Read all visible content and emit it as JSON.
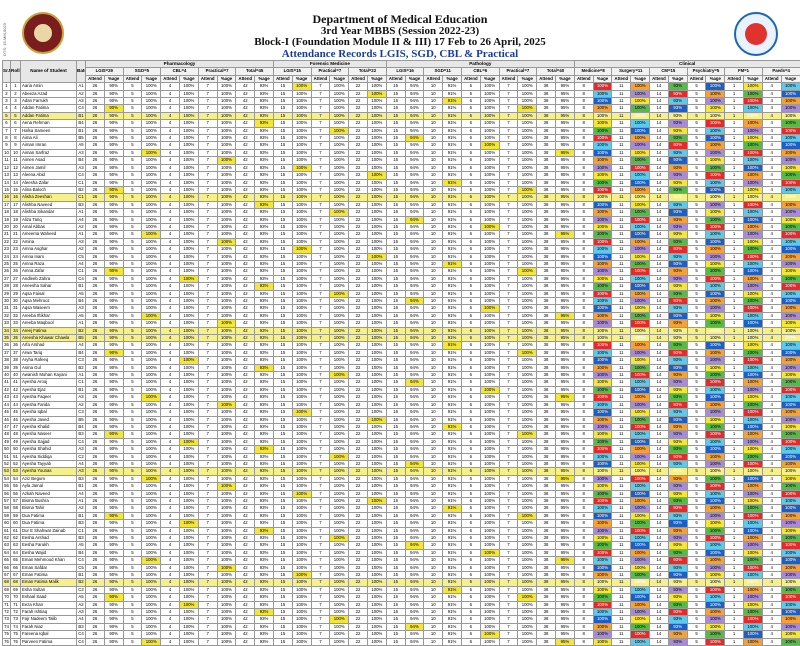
{
  "header": {
    "line1": "Department of Medical Education",
    "line2": "3rd Year MBBS (Session 2022-23)",
    "line3": "Block-I (Foundation Module II & III) 17 Feb to 26 April, 2025",
    "line4": "Attendance Records  LGIS, SGD, CBL & Practical"
  },
  "columns": {
    "sr": "Sr.No.",
    "roll": "Roll No.",
    "name": "Name of Student",
    "batch": "Batch",
    "pharmacology": "Pharmacology",
    "forensic": "Forensic Medicine",
    "pathology": "Pathology",
    "clinical": "Clinical",
    "pharma_sub": [
      "LGIS=29",
      "SGD=5",
      "CBL=4",
      "Practical=7",
      "Total=45"
    ],
    "forensic_sub": [
      "LGIS=15",
      "Practical=7",
      "Total=22"
    ],
    "patho_sub": [
      "LGIS=16",
      "SGD=11",
      "CBL=6",
      "Practical=7",
      "Total=40"
    ],
    "clinical_sub": [
      "Medicine=8",
      "Surgery=11",
      "CM=15",
      "Psychiatry=5",
      "FM=1",
      "Paeds=4"
    ],
    "attend": "Attend",
    "pct": "%age"
  },
  "students": [
    {
      "sr": "1",
      "roll": "1",
      "name": "Aaria Amin",
      "batch": "A1"
    },
    {
      "sr": "2",
      "roll": "2",
      "name": "Abeeza Azad",
      "batch": "A2"
    },
    {
      "sr": "3",
      "roll": "3",
      "name": "Adan Farrukh",
      "batch": "A3"
    },
    {
      "sr": "4",
      "roll": "4",
      "name": "Addan Fatima",
      "batch": "C4"
    },
    {
      "sr": "5",
      "roll": "5",
      "name": "Addan Fatima",
      "batch": "B1"
    },
    {
      "sr": "6",
      "roll": "6",
      "name": "Aena Rehman",
      "batch": "B4"
    },
    {
      "sr": "7",
      "roll": "7",
      "name": "Hafsa Sameen",
      "batch": "B1"
    },
    {
      "sr": "8",
      "roll": "8",
      "name": "Aima Ali",
      "batch": "B5"
    },
    {
      "sr": "9",
      "roll": "9",
      "name": "Aiman Imran",
      "batch": "A5"
    },
    {
      "sr": "10",
      "roll": "10",
      "name": "Aiman Sarfraz",
      "batch": "A3"
    },
    {
      "sr": "11",
      "roll": "11",
      "name": "Aimen Asad",
      "batch": "B4"
    },
    {
      "sr": "12",
      "roll": "12",
      "name": "Aimen Jamil",
      "batch": "A3"
    },
    {
      "sr": "13",
      "roll": "13",
      "name": "Aleena Abid",
      "batch": "C4"
    },
    {
      "sr": "14",
      "roll": "14",
      "name": "Aleesha Zafar",
      "batch": "C1"
    },
    {
      "sr": "15",
      "roll": "15",
      "name": "Alina Baloch",
      "batch": "B2"
    },
    {
      "sr": "16",
      "roll": "16",
      "name": "Alisha Zeeshan",
      "batch": "C1"
    },
    {
      "sr": "17",
      "roll": "17",
      "name": "Alishba Naveed",
      "batch": "B3"
    },
    {
      "sr": "18",
      "roll": "18",
      "name": "Alishba Sikandar",
      "batch": "A1"
    },
    {
      "sr": "19",
      "roll": "19",
      "name": "Aliza Tariq",
      "batch": "A4"
    },
    {
      "sr": "20",
      "roll": "20",
      "name": "Amal Abbas",
      "batch": "A2"
    },
    {
      "sr": "21",
      "roll": "21",
      "name": "Ameema Waheed",
      "batch": "A1"
    },
    {
      "sr": "22",
      "roll": "22",
      "name": "Amina",
      "batch": "A3"
    },
    {
      "sr": "23",
      "roll": "23",
      "name": "Amna Asghar",
      "batch": "A2"
    },
    {
      "sr": "24",
      "roll": "24",
      "name": "Amna Inam",
      "batch": "C5"
    },
    {
      "sr": "25",
      "roll": "25",
      "name": "Amna Raza",
      "batch": "A4"
    },
    {
      "sr": "26",
      "roll": "26",
      "name": "Amna Zafar",
      "batch": "C1"
    },
    {
      "sr": "27",
      "roll": "27",
      "name": "Andleeb Zahra",
      "batch": "C4"
    },
    {
      "sr": "28",
      "roll": "28",
      "name": "Aneesha Sahar",
      "batch": "B1"
    },
    {
      "sr": "29",
      "roll": "29",
      "name": "Aqsa Faisal",
      "batch": "A5"
    },
    {
      "sr": "30",
      "roll": "30",
      "name": "Aqsa Mehrooz",
      "batch": "B4"
    },
    {
      "sr": "31",
      "roll": "31",
      "name": "Aqsa Waseem",
      "batch": "A3"
    },
    {
      "sr": "32",
      "roll": "32",
      "name": "Areeba Iftikhar",
      "batch": "A5"
    },
    {
      "sr": "33",
      "roll": "33",
      "name": "Areeba Maqbool",
      "batch": "A1"
    },
    {
      "sr": "34",
      "roll": "34",
      "name": "Areej Fatima",
      "batch": "B2"
    },
    {
      "sr": "35",
      "roll": "35",
      "name": "Areesha Khawar Chawla",
      "batch": "B5"
    },
    {
      "sr": "36",
      "roll": "36",
      "name": "Arfa Arshad",
      "batch": "A4"
    },
    {
      "sr": "37",
      "roll": "37",
      "name": "Arwa Tariq",
      "batch": "B4"
    },
    {
      "sr": "38",
      "roll": "38",
      "name": "Aryha Rafeeq",
      "batch": "C3"
    },
    {
      "sr": "39",
      "roll": "39",
      "name": "Asma Gul",
      "batch": "B2"
    },
    {
      "sr": "40",
      "roll": "40",
      "name": "Awanish Mohan Kayani",
      "batch": "A1"
    },
    {
      "sr": "41",
      "roll": "41",
      "name": "Ayesha Arooj",
      "batch": "C1"
    },
    {
      "sr": "42",
      "roll": "42",
      "name": "Ayesha Ejaz",
      "batch": "B1"
    },
    {
      "sr": "43",
      "roll": "43",
      "name": "Ayesha Faqeer",
      "batch": "A3"
    },
    {
      "sr": "44",
      "roll": "44",
      "name": "Ayesha Farida",
      "batch": "A2"
    },
    {
      "sr": "45",
      "roll": "45",
      "name": "Ayesha Iqbal",
      "batch": "C3"
    },
    {
      "sr": "46",
      "roll": "46",
      "name": "Ayesha Javed",
      "batch": "B5"
    },
    {
      "sr": "47",
      "roll": "47",
      "name": "Ayesha Khalid",
      "batch": "B4"
    },
    {
      "sr": "48",
      "roll": "48",
      "name": "Ayesha Naseer",
      "batch": "B3"
    },
    {
      "sr": "49",
      "roll": "49",
      "name": "Ayesha Sajjad",
      "batch": "C4"
    },
    {
      "sr": "50",
      "roll": "50",
      "name": "Ayesha Shahid",
      "batch": "A3"
    },
    {
      "sr": "51",
      "roll": "51",
      "name": "Ayesha Siddiqa",
      "batch": "C2"
    },
    {
      "sr": "52",
      "roll": "52",
      "name": "Ayesha Tayyab",
      "batch": "A4"
    },
    {
      "sr": "53",
      "roll": "53",
      "name": "Ayesha Younas",
      "batch": "A3"
    },
    {
      "sr": "54",
      "roll": "54",
      "name": "Aziz Begum",
      "batch": "B3"
    },
    {
      "sr": "55",
      "roll": "55",
      "name": "Ayla Jamal",
      "batch": "B1"
    },
    {
      "sr": "56",
      "roll": "56",
      "name": "Azkah Naveed",
      "batch": "A4"
    },
    {
      "sr": "57",
      "roll": "57",
      "name": "Bisma Bushra",
      "batch": "A1"
    },
    {
      "sr": "58",
      "roll": "58",
      "name": "Bisma Tahir",
      "batch": "A2"
    },
    {
      "sr": "59",
      "roll": "59",
      "name": "Dua Fatima",
      "batch": "B1"
    },
    {
      "sr": "60",
      "roll": "60",
      "name": "Dua Fatima",
      "batch": "B3"
    },
    {
      "sr": "61",
      "roll": "61",
      "name": "Dur E Shahwar Zainab",
      "batch": "C1"
    },
    {
      "sr": "62",
      "roll": "62",
      "name": "Eesha Arshad",
      "batch": "B3"
    },
    {
      "sr": "63",
      "roll": "63",
      "name": "Eesha Farukh",
      "batch": "A5"
    },
    {
      "sr": "64",
      "roll": "64",
      "name": "Eesha Wajid",
      "batch": "B4"
    },
    {
      "sr": "65",
      "roll": "65",
      "name": "Eman Mehmood Khan",
      "batch": "C4"
    },
    {
      "sr": "66",
      "roll": "66",
      "name": "Eman Safdar",
      "batch": "C5"
    },
    {
      "sr": "67",
      "roll": "67",
      "name": "Eman Fatima",
      "batch": "B1"
    },
    {
      "sr": "68",
      "roll": "68",
      "name": "Eman Fatima Malik",
      "batch": "B2"
    },
    {
      "sr": "69",
      "roll": "69",
      "name": "Esha Sultan",
      "batch": "C2"
    },
    {
      "sr": "70",
      "roll": "70",
      "name": "Eshaal Saad",
      "batch": "A5"
    },
    {
      "sr": "71",
      "roll": "71",
      "name": "Eeza Khan",
      "batch": "A2"
    },
    {
      "sr": "72",
      "roll": "72",
      "name": "Farah Ishtiaq",
      "batch": "A3"
    },
    {
      "sr": "73",
      "roll": "73",
      "name": "Fajr Nadeem Talib",
      "batch": "A4"
    },
    {
      "sr": "74",
      "roll": "74",
      "name": "Farah Niaz",
      "batch": "B3"
    },
    {
      "sr": "75",
      "roll": "75",
      "name": "Fareena Iqbal",
      "batch": "C4"
    },
    {
      "sr": "76",
      "roll": "76",
      "name": "Parveen Fatima",
      "batch": "C4"
    }
  ],
  "highlight_rows": [
    5,
    16,
    34,
    35,
    53,
    68
  ],
  "pharma_values": [
    "26",
    "90%",
    "5",
    "100%",
    "4",
    "100%",
    "7",
    "100%",
    "42",
    "93%"
  ],
  "forensic_values": [
    "15",
    "100%",
    "7",
    "100%",
    "22",
    "100%"
  ],
  "patho_values": [
    "15",
    "94%",
    "10",
    "91%",
    "6",
    "100%",
    "7",
    "100%",
    "38",
    "95%"
  ],
  "clinical_values": [
    "8",
    "100%",
    "11",
    "100%",
    "14",
    "93%",
    "5",
    "100%",
    "1",
    "100%",
    "4",
    "100%"
  ],
  "colors": {
    "yellow": "#f3e53a",
    "orange": "#f4a237",
    "red": "#e22b2b",
    "green": "#57b947",
    "blue": "#1d5fc2",
    "cyan": "#5ec9e8",
    "purple": "#a78bd6"
  },
  "docno": "DTS: 15-MM-0023"
}
